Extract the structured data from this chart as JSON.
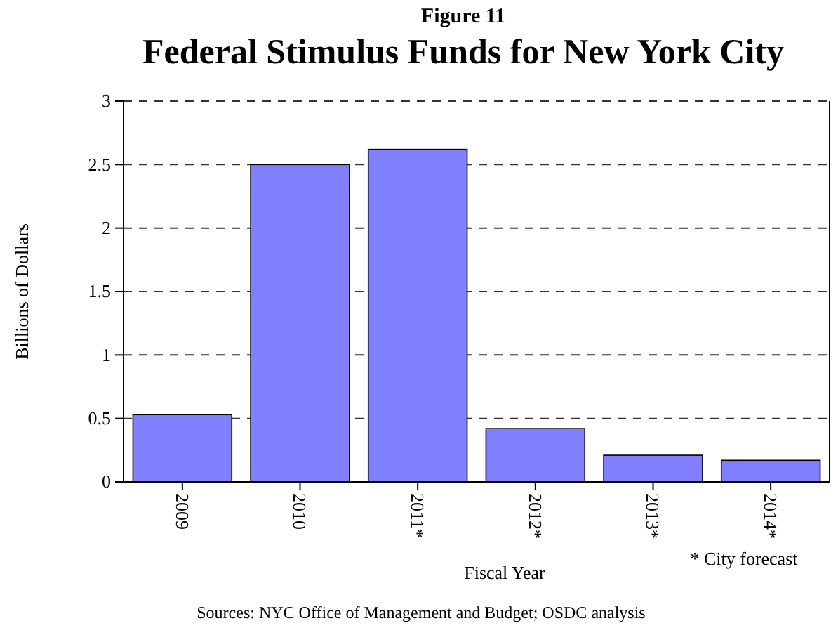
{
  "chart_data": {
    "type": "bar",
    "subtitle": "Figure 11",
    "title": "Federal Stimulus Funds for New York City",
    "xlabel": "Fiscal Year",
    "ylabel": "Billions of Dollars",
    "categories": [
      "2009",
      "2010",
      "2011*",
      "2012*",
      "2013*",
      "2014*"
    ],
    "values": [
      0.53,
      2.5,
      2.62,
      0.42,
      0.21,
      0.17
    ],
    "color": "#8080ff",
    "ylim": [
      0,
      3
    ],
    "yticks": [
      0,
      0.5,
      1,
      1.5,
      2,
      2.5,
      3
    ],
    "grid": "y",
    "annotations": [
      "* City forecast",
      "Sources: NYC Office of Management and Budget; OSDC analysis"
    ]
  }
}
